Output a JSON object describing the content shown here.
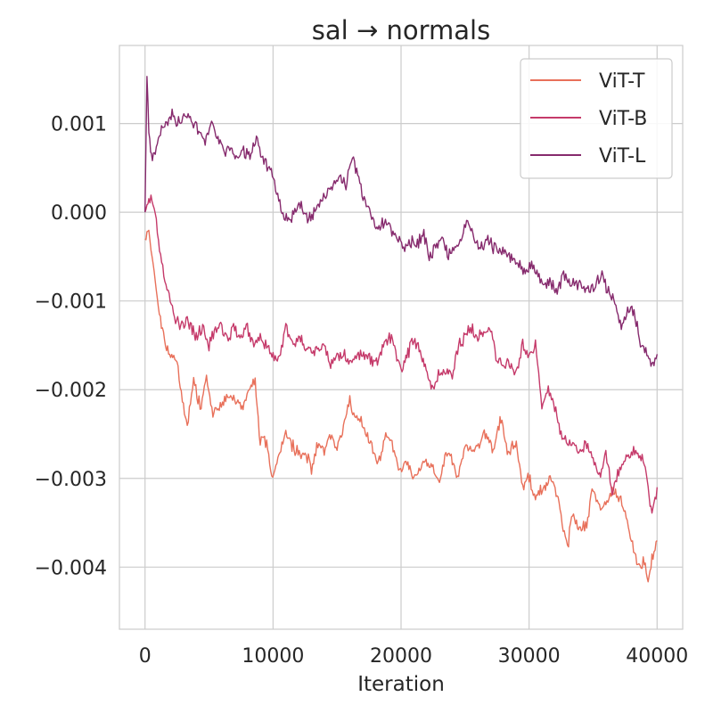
{
  "chart_data": {
    "type": "line",
    "title": "sal → normals",
    "xlabel": "Iteration",
    "ylabel": "",
    "xlim": [
      -2000,
      42000
    ],
    "ylim": [
      -0.0047,
      0.00188
    ],
    "x_ticks": [
      0,
      10000,
      20000,
      30000,
      40000
    ],
    "x_tick_labels": [
      "0",
      "10000",
      "20000",
      "30000",
      "40000"
    ],
    "y_ticks": [
      0.001,
      0.0,
      -0.001,
      -0.002,
      -0.003,
      -0.004
    ],
    "y_tick_labels": [
      "0.001",
      "0.000",
      "−0.001",
      "−0.002",
      "−0.003",
      "−0.004"
    ],
    "grid": true,
    "legend_position": "top-right",
    "series": [
      {
        "name": "ViT-T",
        "color": "#e8705a",
        "x": [
          0,
          300,
          800,
          1200,
          1600,
          2000,
          2500,
          3000,
          3300,
          3800,
          4300,
          4800,
          5300,
          5800,
          6300,
          7000,
          7500,
          8200,
          8600,
          9000,
          9500,
          9900,
          10300,
          11000,
          11800,
          12500,
          13000,
          13500,
          14000,
          14500,
          15000,
          15500,
          16000,
          16300,
          16800,
          17300,
          17800,
          18300,
          18800,
          19300,
          19800,
          20300,
          21000,
          21800,
          22500,
          23000,
          23500,
          24000,
          24500,
          25000,
          25800,
          26500,
          27200,
          27800,
          28300,
          29000,
          29500,
          30000,
          30500,
          31200,
          31800,
          32500,
          33000,
          33400,
          34000,
          34500,
          35000,
          35500,
          36000,
          36500,
          37000,
          37500,
          38000,
          38500,
          39000,
          39300,
          39600,
          40000
        ],
        "values": [
          -0.0003,
          -0.0002,
          -0.0008,
          -0.0012,
          -0.0015,
          -0.0016,
          -0.0017,
          -0.0022,
          -0.0024,
          -0.0019,
          -0.0022,
          -0.0019,
          -0.0023,
          -0.0022,
          -0.0021,
          -0.0021,
          -0.0022,
          -0.002,
          -0.0019,
          -0.0026,
          -0.0026,
          -0.003,
          -0.0028,
          -0.0025,
          -0.0027,
          -0.0027,
          -0.0029,
          -0.0026,
          -0.0027,
          -0.0025,
          -0.0027,
          -0.0024,
          -0.0021,
          -0.0023,
          -0.0023,
          -0.0025,
          -0.0027,
          -0.0028,
          -0.0025,
          -0.0026,
          -0.0029,
          -0.0028,
          -0.003,
          -0.0028,
          -0.0029,
          -0.003,
          -0.0027,
          -0.0028,
          -0.003,
          -0.0026,
          -0.0027,
          -0.0025,
          -0.0027,
          -0.0023,
          -0.0027,
          -0.0026,
          -0.0031,
          -0.003,
          -0.0032,
          -0.0031,
          -0.003,
          -0.0034,
          -0.0038,
          -0.0034,
          -0.0036,
          -0.0035,
          -0.0031,
          -0.0033,
          -0.0033,
          -0.0031,
          -0.0032,
          -0.0034,
          -0.0037,
          -0.004,
          -0.0039,
          -0.0042,
          -0.0039,
          -0.0037
        ]
      },
      {
        "name": "ViT-B",
        "color": "#c53a6a",
        "x": [
          0,
          300,
          800,
          1300,
          1800,
          2300,
          2800,
          3300,
          4000,
          4500,
          5000,
          5500,
          6000,
          6500,
          7000,
          7500,
          8000,
          8500,
          9000,
          9500,
          10000,
          10500,
          11000,
          11500,
          12000,
          13000,
          14000,
          14500,
          15000,
          15500,
          16000,
          16500,
          17000,
          18000,
          19000,
          19500,
          20000,
          21000,
          21500,
          22500,
          23000,
          24000,
          24500,
          25000,
          25500,
          26000,
          27000,
          27500,
          28000,
          29000,
          29500,
          30000,
          30500,
          31000,
          31500,
          32000,
          32500,
          33000,
          33500,
          34000,
          34500,
          35000,
          35500,
          36000,
          36500,
          37000,
          37500,
          38000,
          38500,
          39000,
          39300,
          39600,
          40000
        ],
        "values": [
          0.0,
          0.0002,
          0.0,
          -0.0006,
          -0.0009,
          -0.0012,
          -0.0013,
          -0.0012,
          -0.0014,
          -0.0013,
          -0.0015,
          -0.0013,
          -0.0013,
          -0.0014,
          -0.0013,
          -0.0014,
          -0.0013,
          -0.0015,
          -0.0014,
          -0.0015,
          -0.0016,
          -0.0016,
          -0.0013,
          -0.0015,
          -0.0014,
          -0.0016,
          -0.0015,
          -0.0017,
          -0.0016,
          -0.0016,
          -0.0017,
          -0.0016,
          -0.0016,
          -0.0017,
          -0.0014,
          -0.0015,
          -0.0018,
          -0.0014,
          -0.0016,
          -0.002,
          -0.0018,
          -0.0018,
          -0.0015,
          -0.0014,
          -0.0013,
          -0.0014,
          -0.0013,
          -0.0017,
          -0.0017,
          -0.0018,
          -0.0015,
          -0.0016,
          -0.0015,
          -0.0022,
          -0.002,
          -0.0022,
          -0.0025,
          -0.0026,
          -0.0026,
          -0.0027,
          -0.0026,
          -0.0028,
          -0.003,
          -0.0027,
          -0.0032,
          -0.0029,
          -0.0028,
          -0.0027,
          -0.0027,
          -0.0028,
          -0.0031,
          -0.0034,
          -0.0031
        ]
      },
      {
        "name": "ViT-L",
        "color": "#862a6d",
        "x": [
          0,
          150,
          300,
          500,
          800,
          1200,
          1700,
          2200,
          2700,
          3200,
          3700,
          4200,
          4700,
          5200,
          5700,
          6200,
          6700,
          7200,
          7700,
          8200,
          8700,
          9200,
          9700,
          10200,
          10700,
          11200,
          11700,
          12200,
          12700,
          13200,
          13700,
          14200,
          14700,
          15200,
          15700,
          16200,
          16700,
          17200,
          17700,
          18200,
          18700,
          19200,
          19700,
          20200,
          20700,
          21200,
          21700,
          22200,
          22700,
          23200,
          23700,
          24200,
          24700,
          25200,
          25700,
          26200,
          26700,
          27200,
          27700,
          28200,
          28700,
          29200,
          29700,
          30200,
          30700,
          31200,
          31700,
          32200,
          32700,
          33200,
          33700,
          34200,
          34700,
          35200,
          35700,
          36200,
          36700,
          37200,
          37700,
          38200,
          38700,
          39200,
          39600,
          40000
        ],
        "values": [
          0.0,
          0.0015,
          0.0009,
          0.0006,
          0.0007,
          0.0009,
          0.001,
          0.0011,
          0.001,
          0.0011,
          0.001,
          0.0009,
          0.0008,
          0.001,
          0.0008,
          0.0007,
          0.0007,
          0.0006,
          0.0007,
          0.0006,
          0.0008,
          0.0006,
          0.0005,
          0.0003,
          0.0,
          -0.0001,
          0.0,
          0.0001,
          -0.0001,
          0.0,
          0.0001,
          0.0002,
          0.0003,
          0.0004,
          0.0003,
          0.0006,
          0.0004,
          0.0001,
          0.0,
          -0.0002,
          -0.0001,
          -0.0002,
          -0.0003,
          -0.0004,
          -0.0003,
          -0.0004,
          -0.0002,
          -0.0005,
          -0.0004,
          -0.0003,
          -0.0005,
          -0.0004,
          -0.0003,
          -0.0001,
          -0.0003,
          -0.0004,
          -0.0003,
          -0.0004,
          -0.0004,
          -0.0005,
          -0.0005,
          -0.0006,
          -0.0007,
          -0.0006,
          -0.0007,
          -0.0008,
          -0.0008,
          -0.0009,
          -0.0007,
          -0.0008,
          -0.0008,
          -0.0008,
          -0.0009,
          -0.0008,
          -0.0007,
          -0.0009,
          -0.001,
          -0.0013,
          -0.0011,
          -0.0011,
          -0.0015,
          -0.0016,
          -0.0017,
          -0.0016
        ]
      }
    ]
  }
}
